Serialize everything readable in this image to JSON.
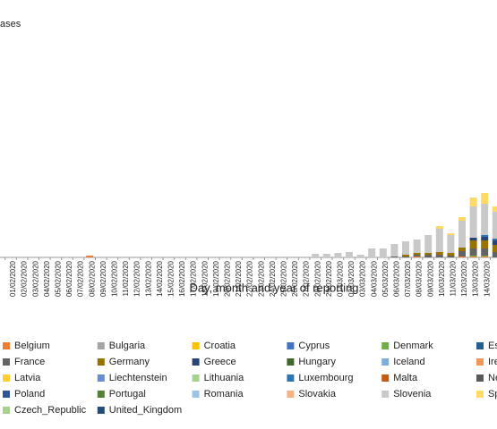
{
  "chart_data": {
    "type": "stacked_bar",
    "y_label": "ases",
    "x_label": "Day, month and year of reporting",
    "categories": [
      "01/02/2020",
      "02/02/2020",
      "03/02/2020",
      "04/02/2020",
      "05/02/2020",
      "06/02/2020",
      "07/02/2020",
      "08/02/2020",
      "09/02/2020",
      "10/02/2020",
      "11/02/2020",
      "12/02/2020",
      "13/02/2020",
      "14/02/2020",
      "15/02/2020",
      "16/02/2020",
      "17/02/2020",
      "18/02/2020",
      "19/02/2020",
      "20/02/2020",
      "21/02/2020",
      "22/02/2020",
      "23/02/2020",
      "24/02/2020",
      "25/02/2020",
      "26/02/2020",
      "27/02/2020",
      "28/02/2020",
      "29/02/2020",
      "01/03/2020",
      "02/03/2020",
      "03/03/2020",
      "04/03/2020",
      "05/03/2020",
      "06/03/2020",
      "07/03/2020",
      "08/03/2020",
      "09/03/2020",
      "10/03/2020",
      "11/03/2020",
      "12/03/2020",
      "13/03/2020",
      "14/03/2020",
      null
    ],
    "ylim": [
      0,
      2700
    ],
    "series": [
      {
        "name": "Belgium",
        "color": "#ed7d31",
        "values": [
          0,
          0,
          0,
          0,
          0,
          0,
          0,
          20,
          0,
          0,
          0,
          0,
          0,
          0,
          0,
          0,
          0,
          0,
          0,
          0,
          0,
          0,
          0,
          0,
          0,
          0,
          0,
          0,
          0,
          0,
          0,
          0,
          0,
          0,
          0,
          0,
          10,
          0,
          0,
          0,
          10,
          10,
          10,
          0
        ]
      },
      {
        "name": "Bulgaria",
        "color": "#a5a5a5",
        "values": [
          0,
          0,
          0,
          0,
          0,
          0,
          0,
          0,
          0,
          0,
          0,
          0,
          0,
          0,
          0,
          0,
          0,
          0,
          0,
          0,
          0,
          0,
          0,
          0,
          0,
          0,
          0,
          0,
          0,
          0,
          0,
          0,
          0,
          0,
          0,
          0,
          0,
          0,
          0,
          0,
          0,
          0,
          0,
          0
        ]
      },
      {
        "name": "Croatia",
        "color": "#ffc000",
        "values": [
          0,
          0,
          0,
          0,
          0,
          0,
          0,
          0,
          0,
          0,
          0,
          0,
          0,
          0,
          0,
          0,
          0,
          0,
          0,
          0,
          0,
          0,
          0,
          0,
          0,
          0,
          0,
          0,
          0,
          0,
          0,
          0,
          0,
          0,
          0,
          0,
          0,
          0,
          0,
          0,
          0,
          0,
          0,
          0
        ]
      },
      {
        "name": "Cyprus",
        "color": "#4472c4",
        "values": [
          0,
          0,
          0,
          0,
          0,
          0,
          0,
          0,
          0,
          0,
          0,
          0,
          0,
          0,
          0,
          0,
          0,
          0,
          0,
          0,
          0,
          0,
          0,
          0,
          0,
          0,
          0,
          0,
          0,
          0,
          0,
          0,
          0,
          0,
          0,
          0,
          0,
          0,
          0,
          0,
          0,
          0,
          0,
          0
        ]
      },
      {
        "name": "Denmark",
        "color": "#70ad47",
        "values": [
          0,
          0,
          0,
          0,
          0,
          0,
          0,
          0,
          0,
          0,
          0,
          0,
          0,
          0,
          0,
          0,
          0,
          0,
          0,
          0,
          0,
          0,
          0,
          0,
          0,
          0,
          0,
          0,
          0,
          0,
          0,
          0,
          0,
          0,
          0,
          0,
          0,
          0,
          0,
          0,
          0,
          10,
          10,
          0
        ]
      },
      {
        "name": "Est",
        "color": "#255e91",
        "values": [
          0,
          0,
          0,
          0,
          0,
          0,
          0,
          0,
          0,
          0,
          0,
          0,
          0,
          0,
          0,
          0,
          0,
          0,
          0,
          0,
          0,
          0,
          0,
          0,
          0,
          0,
          0,
          0,
          0,
          0,
          0,
          0,
          0,
          0,
          0,
          0,
          0,
          0,
          0,
          0,
          0,
          0,
          0,
          0
        ]
      },
      {
        "name": "France",
        "color": "#636363",
        "values": [
          0,
          0,
          0,
          0,
          0,
          0,
          0,
          0,
          0,
          0,
          0,
          0,
          0,
          0,
          0,
          0,
          0,
          0,
          0,
          0,
          0,
          0,
          0,
          0,
          0,
          0,
          0,
          0,
          0,
          0,
          0,
          0,
          0,
          0,
          10,
          10,
          20,
          30,
          30,
          20,
          60,
          80,
          80,
          60
        ]
      },
      {
        "name": "Germany",
        "color": "#997300",
        "values": [
          0,
          0,
          0,
          0,
          0,
          0,
          0,
          0,
          0,
          0,
          0,
          0,
          0,
          0,
          0,
          0,
          0,
          0,
          0,
          0,
          0,
          0,
          0,
          0,
          0,
          0,
          0,
          0,
          0,
          0,
          0,
          0,
          0,
          0,
          0,
          20,
          20,
          20,
          30,
          30,
          40,
          90,
          90,
          80
        ]
      },
      {
        "name": "Greece",
        "color": "#264478",
        "values": [
          0,
          0,
          0,
          0,
          0,
          0,
          0,
          0,
          0,
          0,
          0,
          0,
          0,
          0,
          0,
          0,
          0,
          0,
          0,
          0,
          0,
          0,
          0,
          0,
          0,
          0,
          0,
          0,
          0,
          0,
          0,
          0,
          0,
          0,
          0,
          0,
          0,
          0,
          0,
          0,
          0,
          30,
          40,
          50
        ]
      },
      {
        "name": "Hungary",
        "color": "#43682b",
        "values": [
          0,
          0,
          0,
          0,
          0,
          0,
          0,
          0,
          0,
          0,
          0,
          0,
          0,
          0,
          0,
          0,
          0,
          0,
          0,
          0,
          0,
          0,
          0,
          0,
          0,
          0,
          0,
          0,
          0,
          0,
          0,
          0,
          0,
          0,
          0,
          0,
          0,
          0,
          0,
          0,
          0,
          0,
          0,
          0
        ]
      },
      {
        "name": "Iceland",
        "color": "#7cafdd",
        "values": [
          0,
          0,
          0,
          0,
          0,
          0,
          0,
          0,
          0,
          0,
          0,
          0,
          0,
          0,
          0,
          0,
          0,
          0,
          0,
          0,
          0,
          0,
          0,
          0,
          0,
          0,
          0,
          0,
          0,
          0,
          0,
          0,
          0,
          0,
          0,
          0,
          0,
          0,
          0,
          0,
          0,
          0,
          0,
          0
        ]
      },
      {
        "name": "Ire",
        "color": "#f1975a",
        "values": [
          0,
          0,
          0,
          0,
          0,
          0,
          0,
          0,
          0,
          0,
          0,
          0,
          0,
          0,
          0,
          0,
          0,
          0,
          0,
          0,
          0,
          0,
          0,
          0,
          0,
          0,
          0,
          0,
          0,
          0,
          0,
          0,
          0,
          0,
          0,
          0,
          0,
          0,
          0,
          0,
          0,
          0,
          0,
          0
        ]
      },
      {
        "name": "Latvia",
        "color": "#ffcd33",
        "values": [
          0,
          0,
          0,
          0,
          0,
          0,
          0,
          0,
          0,
          0,
          0,
          0,
          0,
          0,
          0,
          0,
          0,
          0,
          0,
          0,
          0,
          0,
          0,
          0,
          0,
          0,
          0,
          0,
          0,
          0,
          0,
          0,
          0,
          0,
          0,
          0,
          0,
          0,
          0,
          0,
          0,
          0,
          0,
          0
        ]
      },
      {
        "name": "Liechtenstein",
        "color": "#698ed0",
        "values": [
          0,
          0,
          0,
          0,
          0,
          0,
          0,
          0,
          0,
          0,
          0,
          0,
          0,
          0,
          0,
          0,
          0,
          0,
          0,
          0,
          0,
          0,
          0,
          0,
          0,
          0,
          0,
          0,
          0,
          0,
          0,
          0,
          0,
          0,
          0,
          0,
          0,
          0,
          0,
          0,
          0,
          0,
          0,
          0
        ]
      },
      {
        "name": "Lithuania",
        "color": "#a9d18e",
        "values": [
          0,
          0,
          0,
          0,
          0,
          0,
          0,
          0,
          0,
          0,
          0,
          0,
          0,
          0,
          0,
          0,
          0,
          0,
          0,
          0,
          0,
          0,
          0,
          0,
          0,
          0,
          0,
          0,
          0,
          0,
          0,
          0,
          0,
          0,
          0,
          0,
          0,
          0,
          0,
          0,
          0,
          0,
          0,
          0
        ]
      },
      {
        "name": "Luxembourg",
        "color": "#2e75b6",
        "values": [
          0,
          0,
          0,
          0,
          0,
          0,
          0,
          0,
          0,
          0,
          0,
          0,
          0,
          0,
          0,
          0,
          0,
          0,
          0,
          0,
          0,
          0,
          0,
          0,
          0,
          0,
          0,
          0,
          0,
          0,
          0,
          0,
          0,
          0,
          0,
          0,
          0,
          0,
          0,
          0,
          0,
          0,
          20,
          20
        ]
      },
      {
        "name": "Malta",
        "color": "#c55a11",
        "values": [
          0,
          0,
          0,
          0,
          0,
          0,
          0,
          0,
          0,
          0,
          0,
          0,
          0,
          0,
          0,
          0,
          0,
          0,
          0,
          0,
          0,
          0,
          0,
          0,
          0,
          0,
          0,
          0,
          0,
          0,
          0,
          0,
          0,
          0,
          0,
          0,
          0,
          0,
          0,
          0,
          0,
          0,
          0,
          0
        ]
      },
      {
        "name": "Ne",
        "color": "#5a5a5a",
        "values": [
          0,
          0,
          0,
          0,
          0,
          0,
          0,
          0,
          0,
          0,
          0,
          0,
          0,
          0,
          0,
          0,
          0,
          0,
          0,
          0,
          0,
          0,
          0,
          0,
          0,
          0,
          0,
          0,
          0,
          0,
          0,
          0,
          0,
          0,
          0,
          0,
          0,
          0,
          0,
          0,
          0,
          0,
          0,
          0
        ]
      },
      {
        "name": "Poland",
        "color": "#2f5597",
        "values": [
          0,
          0,
          0,
          0,
          0,
          0,
          0,
          0,
          0,
          0,
          0,
          0,
          0,
          0,
          0,
          0,
          0,
          0,
          0,
          0,
          0,
          0,
          0,
          0,
          0,
          0,
          0,
          0,
          0,
          0,
          0,
          0,
          0,
          0,
          0,
          0,
          0,
          0,
          0,
          0,
          0,
          0,
          0,
          0
        ]
      },
      {
        "name": "Portugal",
        "color": "#548235",
        "values": [
          0,
          0,
          0,
          0,
          0,
          0,
          0,
          0,
          0,
          0,
          0,
          0,
          0,
          0,
          0,
          0,
          0,
          0,
          0,
          0,
          0,
          0,
          0,
          0,
          0,
          0,
          0,
          0,
          0,
          0,
          0,
          0,
          0,
          0,
          0,
          0,
          0,
          0,
          0,
          0,
          0,
          0,
          0,
          0
        ]
      },
      {
        "name": "Romania",
        "color": "#9dc3e6",
        "values": [
          0,
          0,
          0,
          0,
          0,
          0,
          0,
          0,
          0,
          0,
          0,
          0,
          0,
          0,
          0,
          0,
          0,
          0,
          0,
          0,
          0,
          0,
          0,
          0,
          0,
          0,
          0,
          0,
          0,
          0,
          0,
          0,
          0,
          0,
          0,
          0,
          0,
          0,
          0,
          0,
          0,
          0,
          0,
          0
        ]
      },
      {
        "name": "Slovakia",
        "color": "#f4b183",
        "values": [
          0,
          0,
          0,
          0,
          0,
          0,
          0,
          0,
          0,
          0,
          0,
          0,
          0,
          0,
          0,
          0,
          0,
          0,
          0,
          0,
          0,
          0,
          0,
          0,
          0,
          0,
          0,
          0,
          0,
          0,
          0,
          0,
          0,
          0,
          0,
          0,
          0,
          0,
          0,
          0,
          0,
          0,
          0,
          0
        ]
      },
      {
        "name": "Slovenia",
        "color": "#c9c9c9",
        "values": [
          0,
          0,
          0,
          0,
          0,
          0,
          0,
          0,
          0,
          0,
          0,
          0,
          0,
          0,
          0,
          0,
          0,
          0,
          0,
          0,
          0,
          0,
          0,
          10,
          10,
          10,
          10,
          40,
          40,
          50,
          60,
          30,
          100,
          100,
          140,
          150,
          150,
          200,
          260,
          200,
          300,
          350,
          350,
          300
        ]
      },
      {
        "name": "Sp",
        "color": "#ffd966",
        "values": [
          0,
          0,
          0,
          0,
          0,
          0,
          0,
          0,
          0,
          0,
          0,
          0,
          0,
          0,
          0,
          0,
          0,
          0,
          0,
          0,
          0,
          0,
          0,
          0,
          0,
          0,
          0,
          0,
          0,
          0,
          0,
          0,
          0,
          0,
          0,
          0,
          0,
          0,
          30,
          20,
          40,
          100,
          120,
          60
        ]
      },
      {
        "name": "Czech_Republic",
        "color": "#a9d18e",
        "values": [
          0,
          0,
          0,
          0,
          0,
          0,
          0,
          0,
          0,
          0,
          0,
          0,
          0,
          0,
          0,
          0,
          0,
          0,
          0,
          0,
          0,
          0,
          0,
          0,
          0,
          0,
          0,
          0,
          0,
          0,
          0,
          0,
          0,
          0,
          0,
          0,
          0,
          0,
          0,
          0,
          0,
          0,
          0,
          0
        ]
      },
      {
        "name": "United_Kingdom",
        "color": "#1f4e79",
        "values": [
          0,
          0,
          0,
          0,
          0,
          0,
          0,
          0,
          0,
          0,
          0,
          0,
          0,
          0,
          0,
          0,
          0,
          0,
          0,
          0,
          0,
          0,
          0,
          0,
          0,
          0,
          0,
          0,
          0,
          0,
          0,
          0,
          0,
          0,
          0,
          0,
          0,
          0,
          0,
          0,
          0,
          0,
          0,
          0
        ]
      }
    ]
  }
}
